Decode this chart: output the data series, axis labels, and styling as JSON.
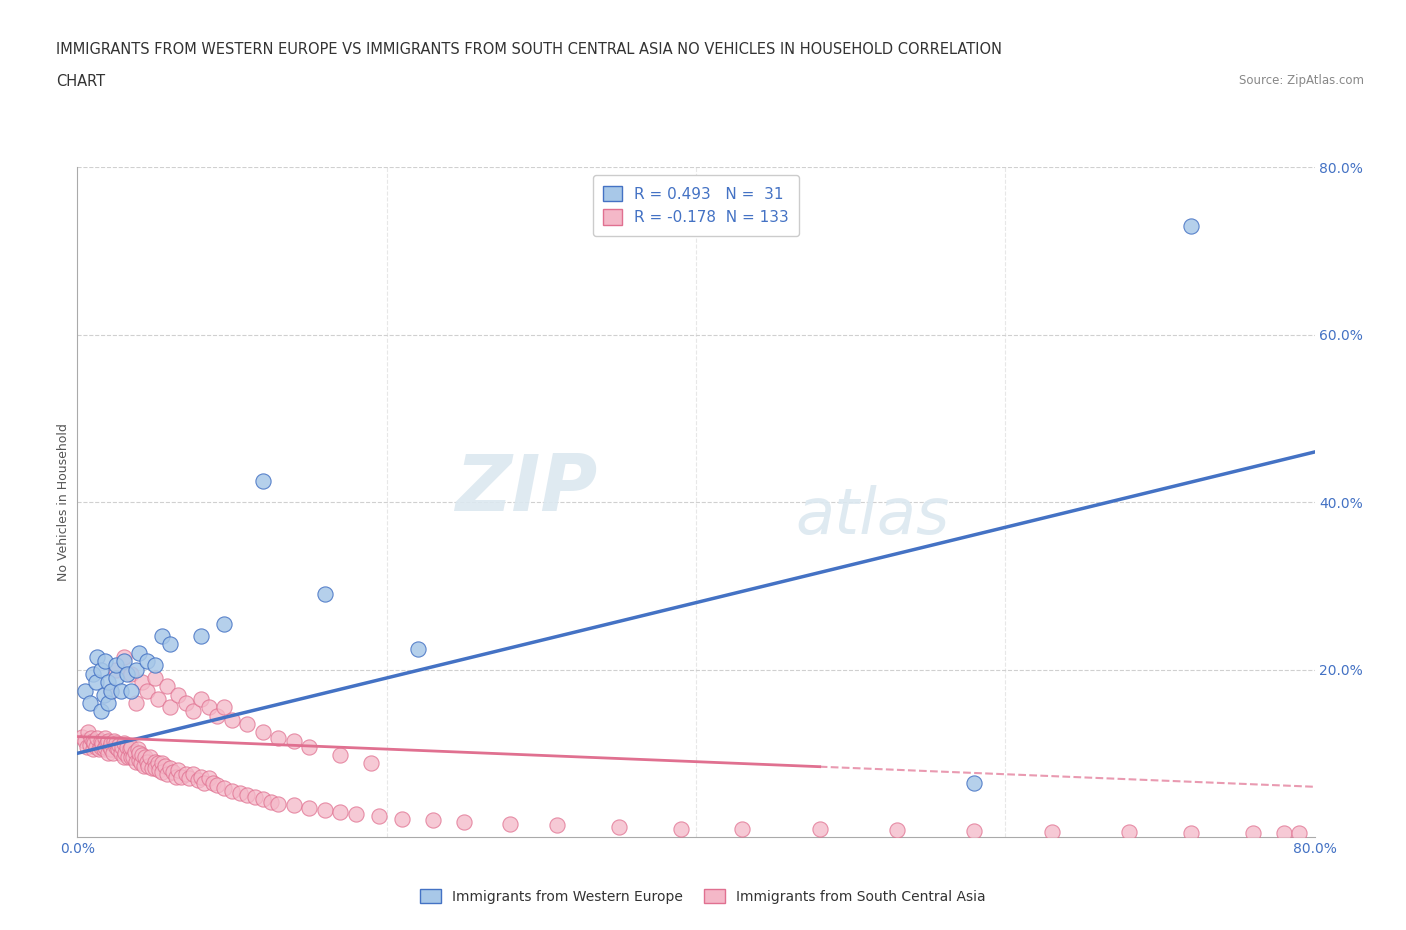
{
  "title_line1": "IMMIGRANTS FROM WESTERN EUROPE VS IMMIGRANTS FROM SOUTH CENTRAL ASIA NO VEHICLES IN HOUSEHOLD CORRELATION",
  "title_line2": "CHART",
  "source": "Source: ZipAtlas.com",
  "ylabel": "No Vehicles in Household",
  "r_western": 0.493,
  "n_western": 31,
  "r_asia": -0.178,
  "n_asia": 133,
  "color_western_fill": "#a8c8e8",
  "color_western_edge": "#4472c4",
  "color_asia_fill": "#f4b8c8",
  "color_asia_edge": "#e07090",
  "color_western_line": "#4472c4",
  "color_asia_line": "#e07090",
  "background_color": "#ffffff",
  "watermark_zip": "ZIP",
  "watermark_atlas": "atlas",
  "grid_color": "#d0d0d0",
  "title_fontsize": 11,
  "axis_fontsize": 9,
  "xlim": [
    0.0,
    0.8
  ],
  "ylim": [
    0.0,
    0.8
  ],
  "western_europe_x": [
    0.005,
    0.008,
    0.01,
    0.012,
    0.013,
    0.015,
    0.015,
    0.017,
    0.018,
    0.02,
    0.02,
    0.022,
    0.025,
    0.025,
    0.028,
    0.03,
    0.032,
    0.035,
    0.038,
    0.04,
    0.045,
    0.05,
    0.055,
    0.06,
    0.08,
    0.095,
    0.12,
    0.16,
    0.22,
    0.58,
    0.72
  ],
  "western_europe_y": [
    0.175,
    0.16,
    0.195,
    0.185,
    0.215,
    0.15,
    0.2,
    0.17,
    0.21,
    0.16,
    0.185,
    0.175,
    0.19,
    0.205,
    0.175,
    0.21,
    0.195,
    0.175,
    0.2,
    0.22,
    0.21,
    0.205,
    0.24,
    0.23,
    0.24,
    0.255,
    0.425,
    0.29,
    0.225,
    0.065,
    0.73
  ],
  "south_central_asia_x": [
    0.003,
    0.005,
    0.006,
    0.007,
    0.008,
    0.009,
    0.01,
    0.01,
    0.011,
    0.012,
    0.013,
    0.014,
    0.015,
    0.015,
    0.016,
    0.017,
    0.018,
    0.018,
    0.019,
    0.02,
    0.02,
    0.021,
    0.022,
    0.022,
    0.023,
    0.024,
    0.025,
    0.025,
    0.026,
    0.027,
    0.028,
    0.029,
    0.03,
    0.03,
    0.031,
    0.032,
    0.033,
    0.034,
    0.035,
    0.035,
    0.036,
    0.037,
    0.038,
    0.039,
    0.04,
    0.04,
    0.041,
    0.042,
    0.043,
    0.044,
    0.045,
    0.046,
    0.047,
    0.048,
    0.05,
    0.05,
    0.052,
    0.053,
    0.055,
    0.055,
    0.057,
    0.058,
    0.06,
    0.062,
    0.064,
    0.065,
    0.067,
    0.07,
    0.072,
    0.075,
    0.078,
    0.08,
    0.082,
    0.085,
    0.088,
    0.09,
    0.095,
    0.1,
    0.105,
    0.11,
    0.115,
    0.12,
    0.125,
    0.13,
    0.14,
    0.15,
    0.16,
    0.17,
    0.18,
    0.195,
    0.21,
    0.23,
    0.25,
    0.28,
    0.31,
    0.35,
    0.39,
    0.43,
    0.48,
    0.53,
    0.58,
    0.63,
    0.68,
    0.72,
    0.76,
    0.78,
    0.79,
    0.022,
    0.025,
    0.03,
    0.035,
    0.038,
    0.042,
    0.045,
    0.05,
    0.052,
    0.058,
    0.06,
    0.065,
    0.07,
    0.075,
    0.08,
    0.085,
    0.09,
    0.095,
    0.1,
    0.11,
    0.12,
    0.13,
    0.14,
    0.15,
    0.17,
    0.19
  ],
  "south_central_asia_y": [
    0.12,
    0.115,
    0.108,
    0.125,
    0.11,
    0.118,
    0.105,
    0.115,
    0.112,
    0.108,
    0.118,
    0.105,
    0.115,
    0.108,
    0.112,
    0.105,
    0.118,
    0.108,
    0.112,
    0.1,
    0.115,
    0.108,
    0.105,
    0.112,
    0.1,
    0.115,
    0.108,
    0.112,
    0.105,
    0.11,
    0.1,
    0.108,
    0.095,
    0.112,
    0.1,
    0.108,
    0.095,
    0.105,
    0.095,
    0.108,
    0.095,
    0.102,
    0.09,
    0.105,
    0.092,
    0.1,
    0.088,
    0.098,
    0.085,
    0.095,
    0.09,
    0.085,
    0.095,
    0.082,
    0.09,
    0.082,
    0.088,
    0.08,
    0.088,
    0.078,
    0.085,
    0.075,
    0.082,
    0.078,
    0.072,
    0.08,
    0.072,
    0.075,
    0.07,
    0.075,
    0.068,
    0.072,
    0.065,
    0.07,
    0.065,
    0.062,
    0.058,
    0.055,
    0.052,
    0.05,
    0.048,
    0.045,
    0.042,
    0.04,
    0.038,
    0.035,
    0.032,
    0.03,
    0.028,
    0.025,
    0.022,
    0.02,
    0.018,
    0.016,
    0.014,
    0.012,
    0.01,
    0.01,
    0.009,
    0.008,
    0.007,
    0.006,
    0.006,
    0.005,
    0.005,
    0.005,
    0.005,
    0.175,
    0.2,
    0.215,
    0.195,
    0.16,
    0.185,
    0.175,
    0.19,
    0.165,
    0.18,
    0.155,
    0.17,
    0.16,
    0.15,
    0.165,
    0.155,
    0.145,
    0.155,
    0.14,
    0.135,
    0.125,
    0.118,
    0.115,
    0.108,
    0.098,
    0.088
  ]
}
